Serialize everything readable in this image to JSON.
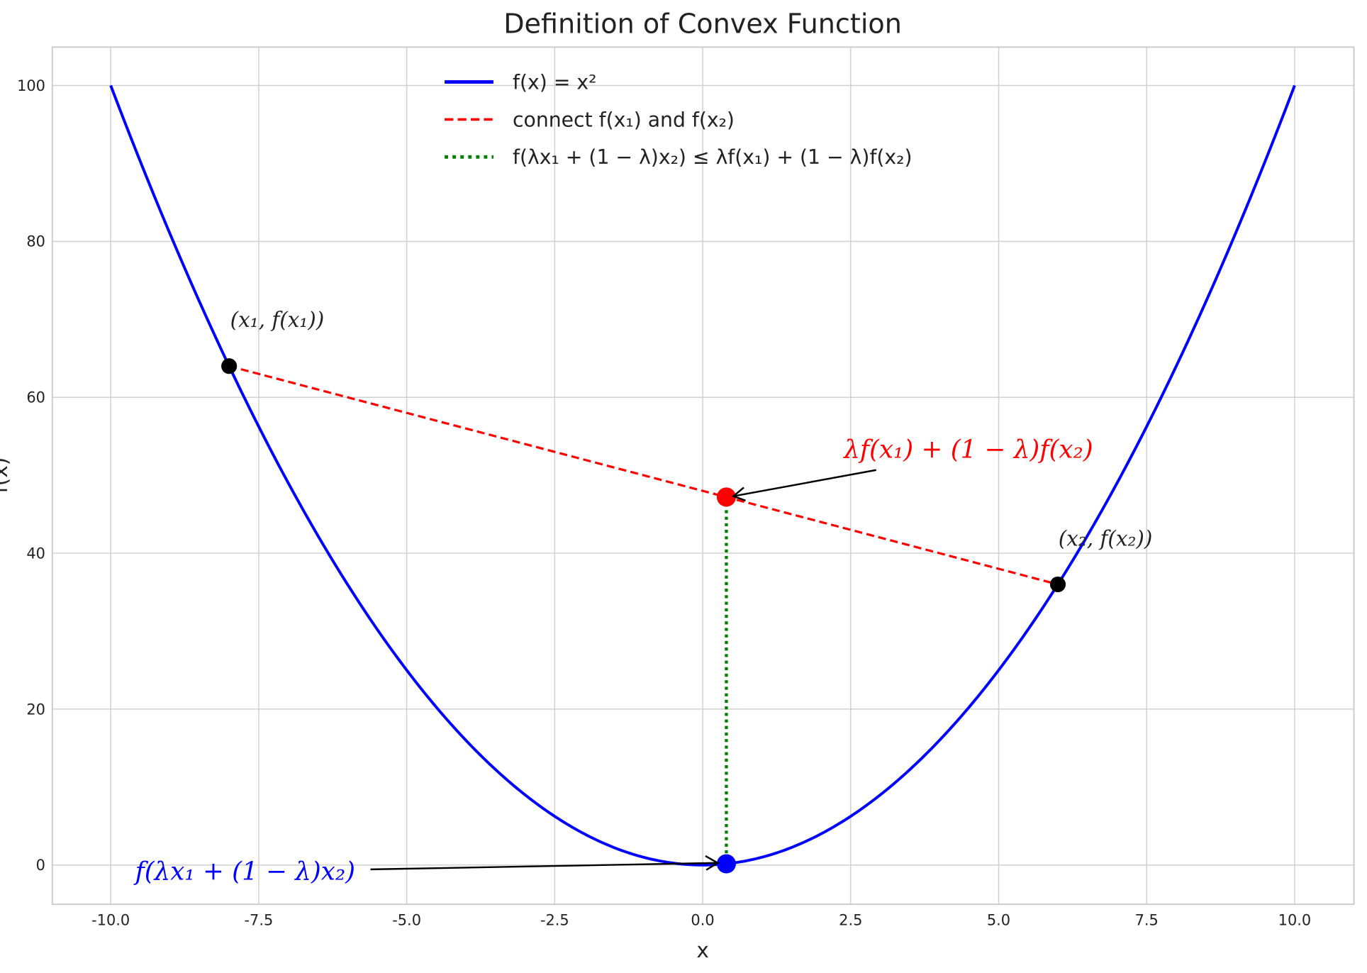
{
  "chart_data": {
    "type": "line",
    "title": "Definition of Convex Function",
    "xlabel": "x",
    "ylabel": "f(x)",
    "xlim": [
      -11,
      11
    ],
    "ylim": [
      -5,
      105
    ],
    "grid": true,
    "legend_placement": "upper-center",
    "xticks": [
      -10.0,
      -7.5,
      -5.0,
      -2.5,
      0.0,
      2.5,
      5.0,
      7.5,
      10.0
    ],
    "xtick_labels": [
      "-10.0",
      "-7.5",
      "-5.0",
      "-2.5",
      "0.0",
      "2.5",
      "5.0",
      "7.5",
      "10.0"
    ],
    "yticks": [
      0,
      20,
      40,
      60,
      80,
      100
    ],
    "ytick_labels": [
      "0",
      "20",
      "40",
      "60",
      "80",
      "100"
    ],
    "curve": {
      "expression": "x^2",
      "x_range": [
        -10,
        10
      ],
      "color": "#0000ff"
    },
    "x1": -8,
    "x2": 6,
    "lambda": 0.4,
    "points": [
      {
        "x": -8,
        "y": 64,
        "color": "#000000",
        "label": "(x₁, f(x₁))"
      },
      {
        "x": 6,
        "y": 36,
        "color": "#000000",
        "label": "(x₂, f(x₂))"
      },
      {
        "x": 0.4,
        "y": 47.2,
        "color": "#ff0000"
      },
      {
        "x": 0.4,
        "y": 0.16,
        "color": "#0000ff"
      }
    ],
    "annotations": [
      {
        "text": "λf(x₁) + (1 − λ)f(x₂)",
        "color": "#ff0000",
        "xy": [
          0.4,
          47.2
        ],
        "xytext": [
          2.5,
          52
        ]
      },
      {
        "text": "f(λx₁ + (1 − λ)x₂)",
        "color": "#0000ff",
        "xy": [
          0.4,
          0.16
        ],
        "xytext": [
          -9.6,
          -1.5
        ]
      }
    ],
    "legend": [
      {
        "label": "f(x) = x²",
        "color": "#0000ff",
        "style": "solid"
      },
      {
        "label": "connect f(x₁) and f(x₂)",
        "color": "#ff0000",
        "style": "dashed"
      },
      {
        "label": "f(λx₁ + (1 − λ)x₂) ≤ λf(x₁) + (1 − λ)f(x₂)",
        "color": "#008000",
        "style": "dotted"
      }
    ]
  }
}
